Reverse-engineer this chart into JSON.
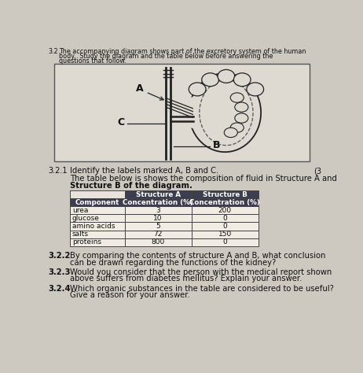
{
  "page_bg": "#cdc9c0",
  "box_bg": "#e8e4dc",
  "header_num": "3.2",
  "header_text1": "The accompanying diagram shows part of the excretory system of the human",
  "header_text2": "body.  Study the diagram and the table below before answering the",
  "header_text3": "questions that follow.",
  "q321_label": "3.2.1",
  "q321_text": "Identify the labels marked A, B and C.",
  "q321_mark": "(3",
  "table_intro1": "The table below is shows the composition of fluid in Structure A and",
  "table_intro2": "Structure B of the diagram.",
  "col_header0": "Component",
  "col_header1a": "Structure A",
  "col_header1b": "Concentration (%)",
  "col_header2a": "Structure B",
  "col_header2b": "Concentration (%)",
  "rows": [
    [
      "urea",
      "3",
      "200"
    ],
    [
      "glucose",
      "10",
      "0"
    ],
    [
      "amino acids",
      "5",
      "0"
    ],
    [
      "salts",
      "72",
      "150"
    ],
    [
      "proteins",
      "800",
      "0"
    ]
  ],
  "q322_label": "3.2.2",
  "q322_text1": "By comparing the contents of structure A and B, what conclusion",
  "q322_text2": "can be drawn regarding the functions of the kidney?",
  "q323_label": "3.2.3",
  "q323_text1": "Would you consider that the person with the medical report shown",
  "q323_text2": "above suffers from diabetes mellitus? Explain your answer.",
  "q324_label": "3.2.4",
  "q324_text1": "Which organic substances in the table are considered to be useful?",
  "q324_text2": "Give a reason for your answer.",
  "table_header_bg": "#3d3d52",
  "table_line_color": "#444444",
  "text_color": "#111111",
  "diagram_line": "#222222",
  "diagram_bg": "#dedad2"
}
